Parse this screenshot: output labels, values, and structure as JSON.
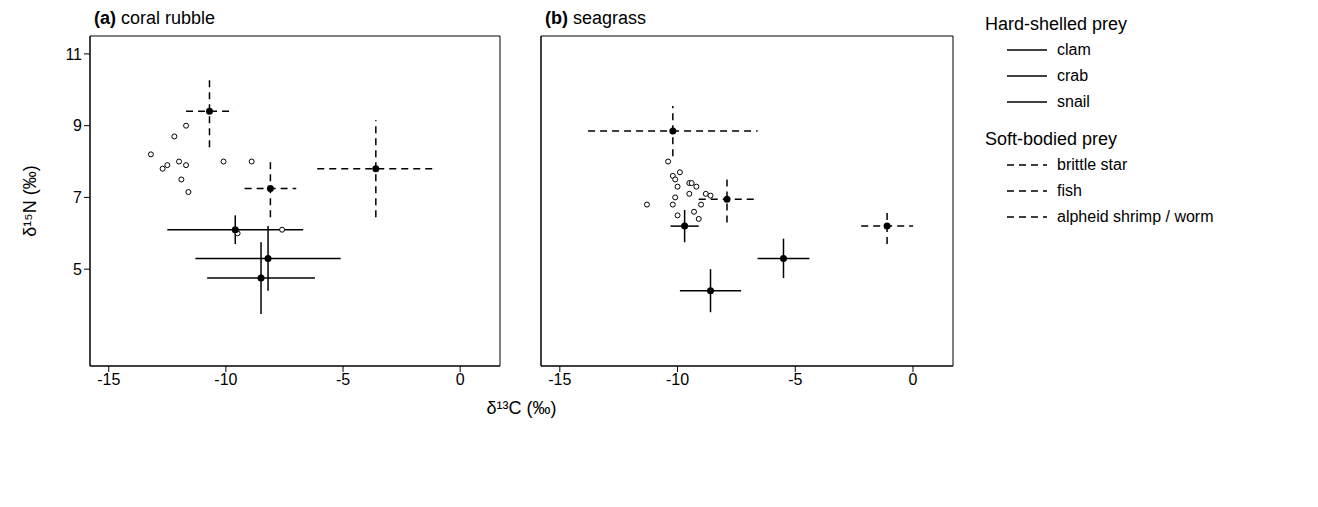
{
  "chart_data": {
    "type": "scatter",
    "xlabel": "δ¹³C (‰)",
    "ylabel": "δ¹⁵N (‰)",
    "xlim": [
      -15.8,
      1.7
    ],
    "ylim": [
      2.3,
      11.5
    ],
    "xticks": [
      -15,
      -10,
      -5,
      0
    ],
    "yticks": [
      5,
      7,
      9,
      11
    ],
    "color": "#000000",
    "legend": "right",
    "groups": [
      {
        "name": "Hard-shelled prey",
        "line_style": "solid",
        "series": [
          "clam",
          "crab",
          "snail"
        ]
      },
      {
        "name": "Soft-bodied prey",
        "line_style": "dashed",
        "series": [
          "brittle star",
          "fish",
          "alpheid shrimp / worm"
        ]
      }
    ],
    "panels": [
      {
        "label": "(a)",
        "title": "coral rubble",
        "prey": [
          {
            "name": "fish",
            "x": -10.7,
            "y": 9.4,
            "x_err": 1.0,
            "y_err": 1.0
          },
          {
            "name": "alpheid shrimp / worm",
            "x": -8.1,
            "y": 7.25,
            "x_err": 1.1,
            "y_err": 0.8
          },
          {
            "name": "brittle star",
            "x": -3.6,
            "y": 7.8,
            "x_err": 2.5,
            "y_err": 1.35
          },
          {
            "name": "clam",
            "x": -9.6,
            "y": 6.1,
            "x_err": 2.9,
            "y_err": 0.4
          },
          {
            "name": "snail",
            "x": -8.2,
            "y": 5.3,
            "x_err": 3.1,
            "y_err": 0.9
          },
          {
            "name": "crab",
            "x": -8.5,
            "y": 4.75,
            "x_err": 2.3,
            "y_err": 1.0
          }
        ],
        "predators": {
          "marker": "open circle",
          "x": [
            -13.2,
            -12.7,
            -12.5,
            -12.0,
            -11.7,
            -11.9,
            -11.6,
            -12.2,
            -11.7,
            -10.1,
            -8.9,
            -9.5,
            -7.6
          ],
          "y": [
            8.2,
            7.8,
            7.9,
            8.0,
            7.9,
            7.5,
            7.15,
            8.7,
            9.0,
            8.0,
            8.0,
            6.0,
            6.1
          ]
        }
      },
      {
        "label": "(b)",
        "title": "seagrass",
        "tick_labels": "x",
        "prey": [
          {
            "name": "fish",
            "x": -10.2,
            "y": 8.85,
            "x_err": 3.6,
            "y_err": 0.7
          },
          {
            "name": "alpheid shrimp / worm",
            "x": -7.9,
            "y": 6.95,
            "x_err": 1.2,
            "y_err": 0.65
          },
          {
            "name": "brittle star",
            "x": -1.1,
            "y": 6.2,
            "x_err": 1.1,
            "y_err": 0.5
          },
          {
            "name": "clam",
            "x": -9.7,
            "y": 6.2,
            "x_err": 0.6,
            "y_err": 0.45
          },
          {
            "name": "snail",
            "x": -5.5,
            "y": 5.3,
            "x_err": 1.1,
            "y_err": 0.55
          },
          {
            "name": "crab",
            "x": -8.6,
            "y": 4.4,
            "x_err": 1.3,
            "y_err": 0.6
          }
        ],
        "predators": {
          "marker": "open circle",
          "x": [
            -10.4,
            -9.9,
            -10.2,
            -10.1,
            -9.5,
            -9.4,
            -10.0,
            -9.2,
            -10.1,
            -9.5,
            -8.8,
            -8.6,
            -11.3,
            -10.2,
            -9.0,
            -9.3,
            -10.0,
            -9.1
          ],
          "y": [
            8.0,
            7.7,
            7.6,
            7.5,
            7.4,
            7.4,
            7.3,
            7.3,
            7.0,
            7.1,
            7.1,
            7.05,
            6.8,
            6.8,
            6.8,
            6.6,
            6.5,
            6.4
          ]
        }
      }
    ]
  }
}
